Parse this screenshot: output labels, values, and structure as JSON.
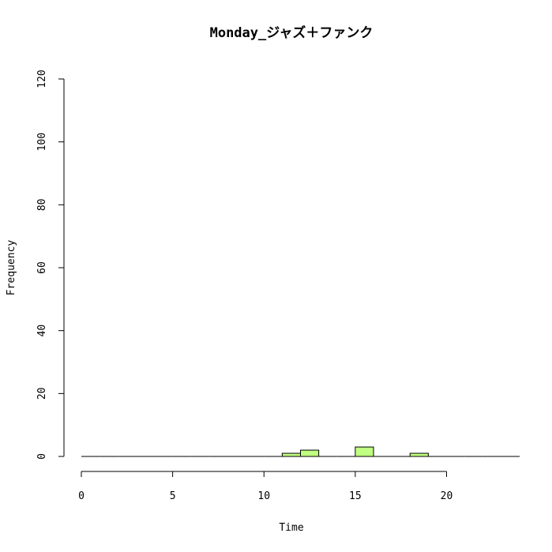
{
  "chart_data": {
    "type": "bar",
    "title": "Monday_ジャズ＋ファンク",
    "xlabel": "Time",
    "ylabel": "Frequency",
    "xlim": [
      0,
      24
    ],
    "ylim": [
      0,
      120
    ],
    "x_ticks": [
      0,
      5,
      10,
      15,
      20
    ],
    "y_ticks": [
      0,
      20,
      40,
      60,
      80,
      100,
      120
    ],
    "bin_width": 1,
    "bins_start": [
      0,
      1,
      2,
      3,
      4,
      5,
      6,
      7,
      8,
      9,
      10,
      11,
      12,
      13,
      14,
      15,
      16,
      17,
      18,
      19,
      20,
      21,
      22,
      23
    ],
    "values": [
      0,
      0,
      0,
      0,
      0,
      0,
      0,
      0,
      0,
      0,
      0,
      1,
      2,
      0,
      0,
      3,
      0,
      0,
      1,
      0,
      0,
      0,
      0,
      0
    ],
    "bar_color": "#c0ff80",
    "grid": false
  }
}
